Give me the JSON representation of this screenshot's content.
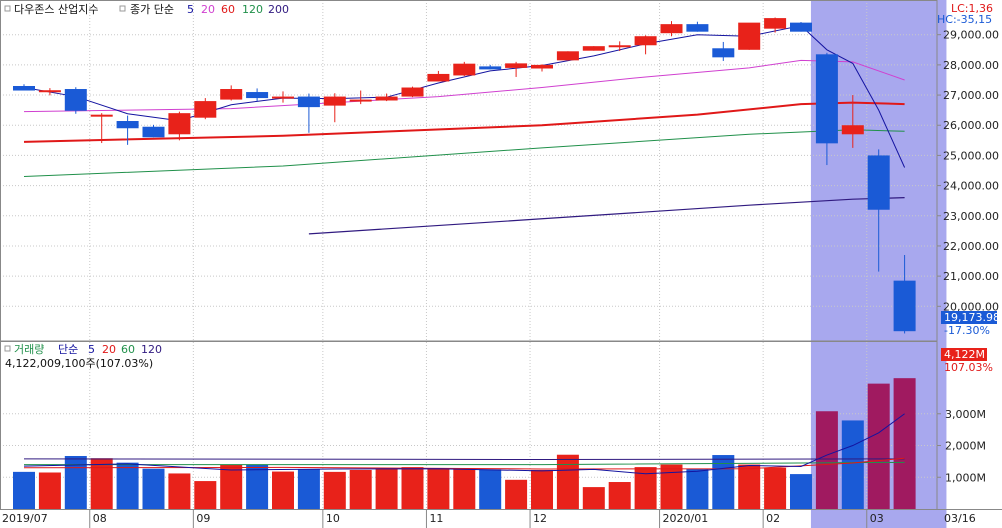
{
  "price_panel": {
    "title": "다우존스 산업지수",
    "legend_prefix": "종가 단순",
    "ma_labels": [
      "5",
      "20",
      "60",
      "120",
      "200"
    ],
    "lc_label": "LC:1,36",
    "hc_label": "HC:-35,15",
    "last_price_label": "19,173.98",
    "change_label": "-17.30%"
  },
  "volume_panel": {
    "title": "거래량",
    "legend_prefix": "단순",
    "ma_labels": [
      "5",
      "20",
      "60",
      "120"
    ],
    "info_label": "4,122,009,100주(107.03%)",
    "last_volume_label": "4,122M",
    "last_pct_label": "107.03%"
  },
  "colors": {
    "up": "#e8221a",
    "down": "#1a5ad6",
    "highlight": "#a8a8ee",
    "ma5": "#1414a0",
    "ma20": "#d040d0",
    "ma60": "#e01818",
    "ma120": "#20904a",
    "ma200": "#301a80",
    "volume_hl": "#a01a60"
  },
  "chart_data": {
    "type": "candlestick",
    "period": "weekly",
    "x_tick_labels": [
      "2019/07",
      "08",
      "09",
      "10",
      "11",
      "12",
      "2020/01",
      "02",
      "03",
      "03/16"
    ],
    "x_tick_candle_index": [
      0,
      3,
      7,
      12,
      16,
      20,
      25,
      29,
      33,
      36
    ],
    "price_axis_ticks": [
      20000,
      21000,
      22000,
      23000,
      24000,
      25000,
      26000,
      27000,
      28000,
      29000
    ],
    "price_axis_labels": [
      "20,000.00",
      "21,000.00",
      "22,000.00",
      "23,000.00",
      "24,000.00",
      "25,000.00",
      "26,000.00",
      "27,000.00",
      "28,000.00",
      "29,000.00"
    ],
    "price_ylim": [
      18850,
      30150
    ],
    "volume_axis_ticks": [
      1000,
      2000,
      3000
    ],
    "volume_axis_labels": [
      "1,000M",
      "2,000M",
      "3,000M"
    ],
    "volume_ylim": [
      0,
      4600
    ],
    "highlight_candle_range": [
      31,
      35
    ],
    "candles": [
      {
        "o": 27300,
        "h": 27360,
        "l": 27150,
        "c": 27150
      },
      {
        "o": 27120,
        "h": 27230,
        "l": 26990,
        "c": 27160
      },
      {
        "o": 27200,
        "h": 27260,
        "l": 26380,
        "c": 26480
      },
      {
        "o": 26300,
        "h": 26400,
        "l": 25410,
        "c": 26350
      },
      {
        "o": 26140,
        "h": 26320,
        "l": 25350,
        "c": 25900
      },
      {
        "o": 25950,
        "h": 26010,
        "l": 25600,
        "c": 25600
      },
      {
        "o": 25700,
        "h": 26450,
        "l": 25500,
        "c": 26400
      },
      {
        "o": 26250,
        "h": 26900,
        "l": 26200,
        "c": 26800
      },
      {
        "o": 26850,
        "h": 27320,
        "l": 26820,
        "c": 27200
      },
      {
        "o": 27100,
        "h": 27220,
        "l": 26800,
        "c": 26900
      },
      {
        "o": 26900,
        "h": 27120,
        "l": 26750,
        "c": 26950
      },
      {
        "o": 26950,
        "h": 27050,
        "l": 25750,
        "c": 26600
      },
      {
        "o": 26650,
        "h": 27060,
        "l": 26100,
        "c": 26950
      },
      {
        "o": 26800,
        "h": 27150,
        "l": 26700,
        "c": 26850
      },
      {
        "o": 26820,
        "h": 27050,
        "l": 26800,
        "c": 26950
      },
      {
        "o": 26950,
        "h": 27280,
        "l": 26930,
        "c": 27250
      },
      {
        "o": 27450,
        "h": 27800,
        "l": 27450,
        "c": 27700
      },
      {
        "o": 27650,
        "h": 28100,
        "l": 27630,
        "c": 28040
      },
      {
        "o": 27950,
        "h": 28000,
        "l": 27850,
        "c": 27850
      },
      {
        "o": 27900,
        "h": 28100,
        "l": 27600,
        "c": 28050
      },
      {
        "o": 27880,
        "h": 28020,
        "l": 27780,
        "c": 28000
      },
      {
        "o": 28150,
        "h": 28450,
        "l": 28140,
        "c": 28450
      },
      {
        "o": 28470,
        "h": 28620,
        "l": 28470,
        "c": 28620
      },
      {
        "o": 28650,
        "h": 28780,
        "l": 28460,
        "c": 28650
      },
      {
        "o": 28650,
        "h": 28980,
        "l": 28350,
        "c": 28950
      },
      {
        "o": 29050,
        "h": 29450,
        "l": 28950,
        "c": 29350
      },
      {
        "o": 29350,
        "h": 29430,
        "l": 29100,
        "c": 29100
      },
      {
        "o": 28550,
        "h": 28760,
        "l": 28130,
        "c": 28250
      },
      {
        "o": 28500,
        "h": 29350,
        "l": 28500,
        "c": 29400
      },
      {
        "o": 29200,
        "h": 29570,
        "l": 29070,
        "c": 29550
      },
      {
        "o": 29400,
        "h": 29420,
        "l": 29100,
        "c": 29100
      },
      {
        "o": 28350,
        "h": 28400,
        "l": 24680,
        "c": 25400
      },
      {
        "o": 25700,
        "h": 27000,
        "l": 25250,
        "c": 26000
      },
      {
        "o": 25000,
        "h": 25200,
        "l": 21150,
        "c": 23200
      },
      {
        "o": 20850,
        "h": 21700,
        "l": 19100,
        "c": 19175
      }
    ],
    "volumes_m": [
      1170,
      1150,
      1670,
      1600,
      1460,
      1270,
      1120,
      880,
      1390,
      1390,
      1180,
      1250,
      1170,
      1230,
      1270,
      1320,
      1270,
      1250,
      1250,
      920,
      1230,
      1710,
      690,
      850,
      1320,
      1400,
      1260,
      1700,
      1400,
      1300,
      1100,
      3080,
      2790,
      3950,
      4122
    ],
    "ma5": [
      {
        "i": 0,
        "v": 27250
      },
      {
        "i": 2,
        "v": 26950
      },
      {
        "i": 4,
        "v": 26380
      },
      {
        "i": 6,
        "v": 26150
      },
      {
        "i": 8,
        "v": 26680
      },
      {
        "i": 10,
        "v": 26900
      },
      {
        "i": 12,
        "v": 26880
      },
      {
        "i": 14,
        "v": 26930
      },
      {
        "i": 16,
        "v": 27400
      },
      {
        "i": 18,
        "v": 27800
      },
      {
        "i": 20,
        "v": 27980
      },
      {
        "i": 22,
        "v": 28300
      },
      {
        "i": 24,
        "v": 28700
      },
      {
        "i": 26,
        "v": 29000
      },
      {
        "i": 28,
        "v": 28950
      },
      {
        "i": 30,
        "v": 29300
      },
      {
        "i": 31,
        "v": 28500
      },
      {
        "i": 32,
        "v": 28050
      },
      {
        "i": 33,
        "v": 26500
      },
      {
        "i": 34,
        "v": 24600
      }
    ],
    "ma20": [
      {
        "i": 0,
        "v": 26450
      },
      {
        "i": 4,
        "v": 26500
      },
      {
        "i": 8,
        "v": 26550
      },
      {
        "i": 12,
        "v": 26750
      },
      {
        "i": 16,
        "v": 26950
      },
      {
        "i": 20,
        "v": 27250
      },
      {
        "i": 24,
        "v": 27600
      },
      {
        "i": 28,
        "v": 27900
      },
      {
        "i": 30,
        "v": 28150
      },
      {
        "i": 32,
        "v": 28100
      },
      {
        "i": 34,
        "v": 27500
      }
    ],
    "ma60": [
      {
        "i": 0,
        "v": 25450
      },
      {
        "i": 10,
        "v": 25650
      },
      {
        "i": 20,
        "v": 26000
      },
      {
        "i": 26,
        "v": 26350
      },
      {
        "i": 30,
        "v": 26700
      },
      {
        "i": 32,
        "v": 26750
      },
      {
        "i": 34,
        "v": 26700
      }
    ],
    "ma120": [
      {
        "i": 0,
        "v": 24300
      },
      {
        "i": 10,
        "v": 24650
      },
      {
        "i": 20,
        "v": 25250
      },
      {
        "i": 28,
        "v": 25700
      },
      {
        "i": 32,
        "v": 25850
      },
      {
        "i": 34,
        "v": 25800
      }
    ],
    "ma200": [
      {
        "i": 11,
        "v": 22400
      },
      {
        "i": 20,
        "v": 22900
      },
      {
        "i": 28,
        "v": 23350
      },
      {
        "i": 32,
        "v": 23550
      },
      {
        "i": 34,
        "v": 23600
      }
    ],
    "vol_ma5": [
      {
        "i": 0,
        "v": 1350
      },
      {
        "i": 4,
        "v": 1420
      },
      {
        "i": 8,
        "v": 1230
      },
      {
        "i": 12,
        "v": 1260
      },
      {
        "i": 16,
        "v": 1270
      },
      {
        "i": 20,
        "v": 1200
      },
      {
        "i": 22,
        "v": 1250
      },
      {
        "i": 24,
        "v": 1110
      },
      {
        "i": 26,
        "v": 1190
      },
      {
        "i": 28,
        "v": 1370
      },
      {
        "i": 30,
        "v": 1340
      },
      {
        "i": 31,
        "v": 1700
      },
      {
        "i": 32,
        "v": 2000
      },
      {
        "i": 33,
        "v": 2400
      },
      {
        "i": 34,
        "v": 3000
      }
    ],
    "vol_ma20": [
      {
        "i": 0,
        "v": 1300
      },
      {
        "i": 10,
        "v": 1310
      },
      {
        "i": 20,
        "v": 1260
      },
      {
        "i": 28,
        "v": 1270
      },
      {
        "i": 32,
        "v": 1450
      },
      {
        "i": 34,
        "v": 1600
      }
    ],
    "vol_ma60": [
      {
        "i": 0,
        "v": 1400
      },
      {
        "i": 20,
        "v": 1400
      },
      {
        "i": 34,
        "v": 1470
      }
    ],
    "vol_ma120": [
      {
        "i": 0,
        "v": 1580
      },
      {
        "i": 20,
        "v": 1560
      },
      {
        "i": 34,
        "v": 1580
      }
    ]
  }
}
